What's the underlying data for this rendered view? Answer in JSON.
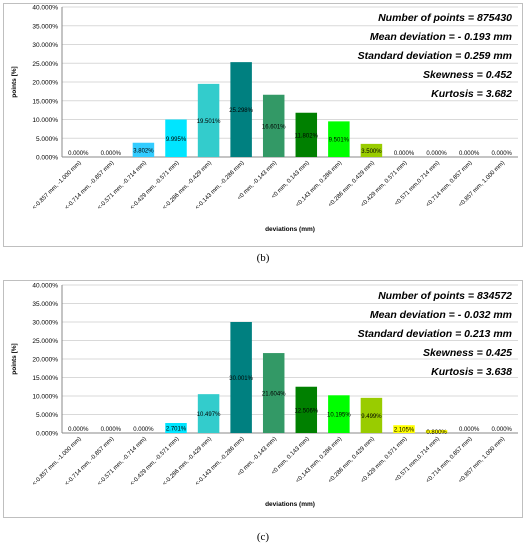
{
  "charts": [
    {
      "caption": "(b)",
      "chart_data": {
        "type": "bar",
        "ylabel": "points [%]",
        "xlabel": "deviations (mm)",
        "ylim": [
          0,
          40
        ],
        "yticks": [
          "0.000%",
          "5.000%",
          "10.000%",
          "15.000%",
          "20.000%",
          "25.000%",
          "30.000%",
          "35.000%",
          "40.000%"
        ],
        "grid": true,
        "categories": [
          "<-0.857 mm, -1.000 mm)",
          "<-0.714 mm, -0.857 mm)",
          "<-0.571 mm, -0.714 mm)",
          "<-0.429 mm, -0.571 mm)",
          "<-0.286 mm, -0.429 mm)",
          "<-0.143 mm, -0.286 mm)",
          "<0 mm, -0.143 mm)",
          "<0 mm, 0.143 mm)",
          "<0.143 mm, 0.286 mm)",
          "<0.286 mm, 0.429 mm)",
          "<0.429 mm, 0.571 mm)",
          "<0.571 mm,0.714 mm)",
          "<0.714 mm, 0.857 mm)",
          "<0.857 mm, 1.000 mm)"
        ],
        "values": [
          0.0,
          0.0,
          3.802,
          9.995,
          19.501,
          25.298,
          16.601,
          11.802,
          9.501,
          3.5,
          0.0,
          0.0,
          0.0,
          0.0
        ],
        "value_labels": [
          "0.000%",
          "0.000%",
          "3.802%",
          "9.995%",
          "19.501%",
          "25.298%",
          "16.601%",
          "11.802%",
          "9.501%",
          "3.500%",
          "0.000%",
          "0.000%",
          "0.000%",
          "0.000%"
        ],
        "bar_colors": [
          "#00b8d4",
          "#00b8d4",
          "#33ccff",
          "#00e5ff",
          "#33cccc",
          "#008080",
          "#339966",
          "#008000",
          "#00ff00",
          "#99cc00",
          "#ffff00",
          "#ffff00",
          "#ffff00",
          "#ffff00"
        ],
        "stats": [
          "Number of points = 875430",
          "Mean deviation = - 0.193 mm",
          "Standard deviation = 0.259 mm",
          "Skewness = 0.452",
          "Kurtosis = 3.682"
        ]
      }
    },
    {
      "caption": "(c)",
      "chart_data": {
        "type": "bar",
        "ylabel": "points [%]",
        "xlabel": "deviations (mm)",
        "ylim": [
          0,
          40
        ],
        "yticks": [
          "0.000%",
          "5.000%",
          "10.000%",
          "15.000%",
          "20.000%",
          "25.000%",
          "30.000%",
          "35.000%",
          "40.000%"
        ],
        "grid": true,
        "categories": [
          "<-0.857 mm, -1.000 mm)",
          "<-0.714 mm, -0.857 mm)",
          "<-0.571 mm, -0.714 mm)",
          "<-0.429 mm, -0.571 mm)",
          "<-0.286 mm, -0.429 mm)",
          "<-0.143 mm, -0.286 mm)",
          "<0 mm, -0.143 mm)",
          "<0 mm, 0.143 mm)",
          "<0.143 mm, 0.286 mm)",
          "<0.286 mm, 0.429 mm)",
          "<0.429 mm, 0.571 mm)",
          "<0.571 mm,0.714 mm)",
          "<0.714 mm, 0.857 mm)",
          "<0.857 mm, 1.000 mm)"
        ],
        "values": [
          0.0,
          0.0,
          0.0,
          2.701,
          10.497,
          30.001,
          21.604,
          12.506,
          10.195,
          9.499,
          2.105,
          0.8,
          0.0,
          0.0
        ],
        "value_labels": [
          "0.000%",
          "0.000%",
          "0.000%",
          "2.701%",
          "10.497%",
          "30.001%",
          "21.604%",
          "12.506%",
          "10.195%",
          "9.499%",
          "2.105%",
          "0.800%",
          "0.000%",
          "0.000%"
        ],
        "bar_colors": [
          "#00b8d4",
          "#00b8d4",
          "#33ccff",
          "#00e5ff",
          "#33cccc",
          "#008080",
          "#339966",
          "#008000",
          "#00ff00",
          "#99cc00",
          "#ffff00",
          "#ffff00",
          "#ffff00",
          "#ffff00"
        ],
        "stats": [
          "Number of points = 834572",
          "Mean deviation = - 0.032 mm",
          "Standard deviation = 0.213 mm",
          "Skewness = 0.425",
          "Kurtosis = 3.638"
        ]
      }
    }
  ]
}
